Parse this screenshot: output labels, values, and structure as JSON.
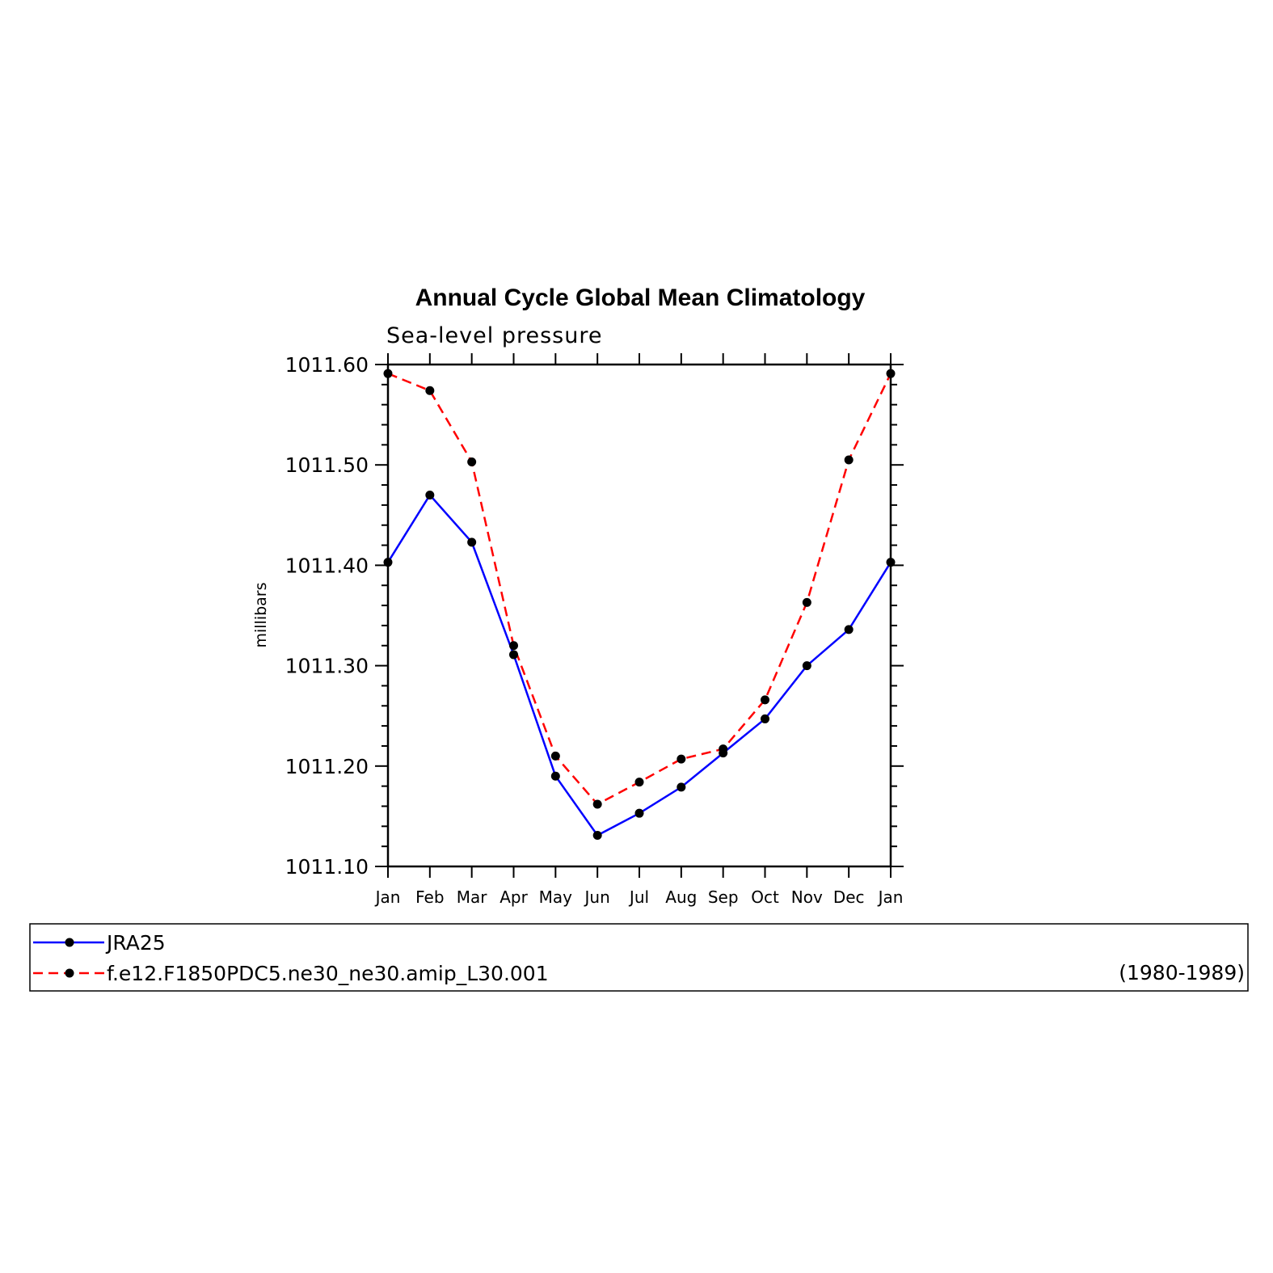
{
  "chart_data": {
    "type": "line",
    "title": "Annual Cycle Global Mean Climatology",
    "subtitle": "Sea-level pressure",
    "ylabel": "millibars",
    "xlabel": "",
    "ylim": [
      1011.1,
      1011.6
    ],
    "yticks": [
      "1011.10",
      "1011.20",
      "1011.30",
      "1011.40",
      "1011.50",
      "1011.60"
    ],
    "categories": [
      "Jan",
      "Feb",
      "Mar",
      "Apr",
      "May",
      "Jun",
      "Jul",
      "Aug",
      "Sep",
      "Oct",
      "Nov",
      "Dec",
      "Jan"
    ],
    "grid": false,
    "legend_placement": "bottom",
    "legend_note": "(1980-1989)",
    "series": [
      {
        "name": "JRA25",
        "color": "#0000ff",
        "dash": "solid",
        "values": [
          1011.403,
          1011.47,
          1011.423,
          1011.311,
          1011.19,
          1011.131,
          1011.153,
          1011.179,
          1011.213,
          1011.247,
          1011.3,
          1011.336,
          1011.403
        ]
      },
      {
        "name": "f.e12.F1850PDC5.ne30_ne30.amip_L30.001",
        "color": "#ff0000",
        "dash": "dashed",
        "values": [
          1011.591,
          1011.574,
          1011.503,
          1011.32,
          1011.21,
          1011.162,
          1011.184,
          1011.207,
          1011.217,
          1011.266,
          1011.363,
          1011.505,
          1011.591
        ]
      }
    ]
  }
}
